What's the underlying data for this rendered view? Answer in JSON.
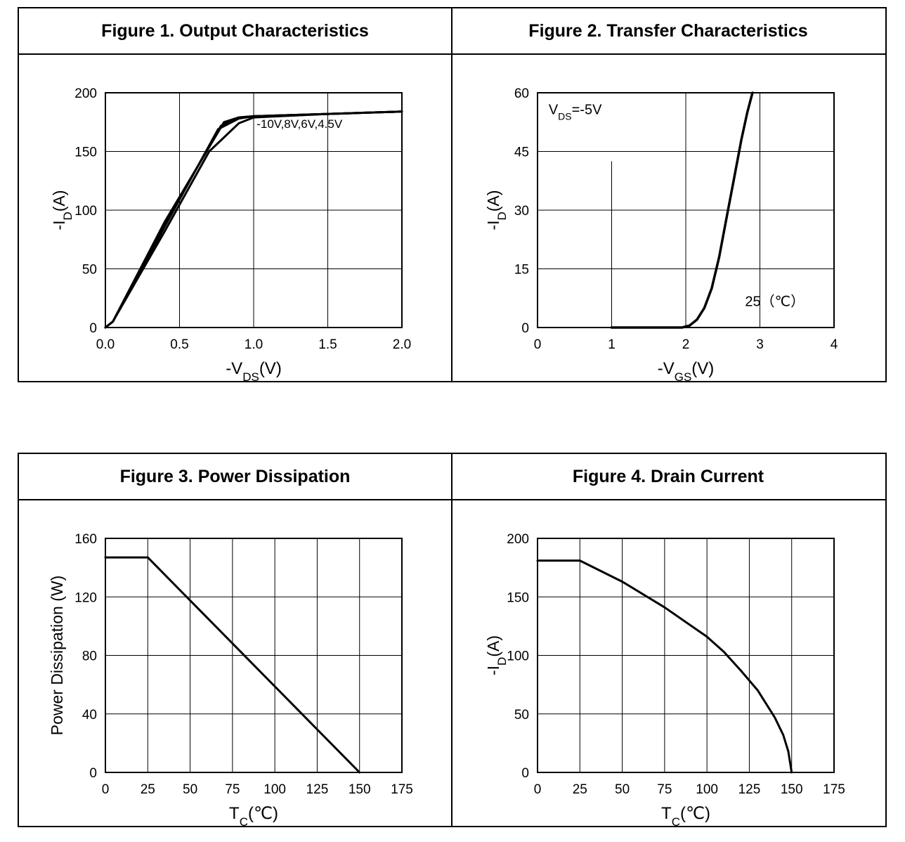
{
  "figures": [
    {
      "title": "Figure 1. Output Characteristics"
    },
    {
      "title": "Figure 2. Transfer Characteristics"
    },
    {
      "title": "Figure 3. Power Dissipation"
    },
    {
      "title": "Figure 4. Drain Current"
    }
  ],
  "chart_data": [
    {
      "type": "line",
      "title": "Figure 1. Output Characteristics",
      "xlabel": "-V",
      "xlabel_sub": "DS",
      "xlabel_unit": "(V)",
      "ylabel": "-I",
      "ylabel_sub": "D",
      "ylabel_unit": "(A)",
      "xlim": [
        0,
        2
      ],
      "ylim": [
        0,
        200
      ],
      "xticks": [
        "0.0",
        "0.5",
        "1.0",
        "1.5",
        "2.0"
      ],
      "xtick_values": [
        0,
        0.5,
        1,
        1.5,
        2
      ],
      "yticks": [
        "0",
        "50",
        "100",
        "150",
        "200"
      ],
      "ytick_values": [
        0,
        50,
        100,
        150,
        200
      ],
      "annotation": "-10V,8V,6V,4.5V",
      "series": [
        {
          "name": "-10V",
          "x": [
            0,
            0.05,
            0.4,
            0.8,
            0.9,
            1.0,
            1.5,
            2.0
          ],
          "y": [
            0,
            5,
            90,
            175,
            179,
            180,
            182,
            184
          ]
        },
        {
          "name": "8V",
          "x": [
            0,
            0.05,
            0.4,
            0.78,
            0.9,
            1.0,
            1.5,
            2.0
          ],
          "y": [
            0,
            5,
            88,
            172,
            179,
            180,
            182,
            184
          ]
        },
        {
          "name": "6V",
          "x": [
            0,
            0.05,
            0.4,
            0.76,
            0.9,
            1.0,
            1.5,
            2.0
          ],
          "y": [
            0,
            5,
            86,
            169,
            178,
            180,
            182,
            184
          ]
        },
        {
          "name": "4.5V",
          "x": [
            0,
            0.05,
            0.4,
            0.7,
            0.9,
            1.0,
            1.5,
            2.0
          ],
          "y": [
            0,
            5,
            82,
            150,
            174,
            179,
            182,
            184
          ]
        }
      ]
    },
    {
      "type": "line",
      "title": "Figure 2. Transfer Characteristics",
      "xlabel": "-V",
      "xlabel_sub": "GS",
      "xlabel_unit": "(V)",
      "ylabel": "-I",
      "ylabel_sub": "D",
      "ylabel_unit": "(A)",
      "xlim": [
        0,
        4
      ],
      "ylim": [
        0,
        60
      ],
      "xticks": [
        "0",
        "1",
        "2",
        "3",
        "4"
      ],
      "xtick_values": [
        0,
        1,
        2,
        3,
        4
      ],
      "yticks": [
        "0",
        "15",
        "30",
        "45",
        "60"
      ],
      "ytick_values": [
        0,
        15,
        30,
        45,
        60
      ],
      "annotation_main": "V",
      "annotation_sub": "DS",
      "annotation_rest": "=-5V",
      "temperature_label": "25（℃）",
      "series": [
        {
          "name": "25℃",
          "x": [
            1.0,
            1.5,
            1.95,
            2.05,
            2.15,
            2.25,
            2.35,
            2.45,
            2.55,
            2.65,
            2.75,
            2.83,
            2.9
          ],
          "y": [
            0,
            0,
            0,
            0.5,
            2,
            5,
            10,
            18,
            28,
            38,
            48,
            55,
            60
          ]
        }
      ]
    },
    {
      "type": "line",
      "title": "Figure 3. Power Dissipation",
      "xlabel": "T",
      "xlabel_sub": "C",
      "xlabel_unit": "(℃)",
      "ylabel": "Power Dissipation (W)",
      "ylabel_sub": "",
      "ylabel_unit": "",
      "xlim": [
        0,
        175
      ],
      "ylim": [
        0,
        160
      ],
      "xticks": [
        "0",
        "25",
        "50",
        "75",
        "100",
        "125",
        "150",
        "175"
      ],
      "xtick_values": [
        0,
        25,
        50,
        75,
        100,
        125,
        150,
        175
      ],
      "yticks": [
        "0",
        "40",
        "80",
        "120",
        "160"
      ],
      "ytick_values": [
        0,
        40,
        80,
        120,
        160
      ],
      "series": [
        {
          "name": "PD",
          "x": [
            0,
            25,
            150
          ],
          "y": [
            147,
            147,
            0
          ]
        }
      ]
    },
    {
      "type": "line",
      "title": "Figure 4. Drain Current",
      "xlabel": "T",
      "xlabel_sub": "C",
      "xlabel_unit": "(℃)",
      "ylabel": "-I",
      "ylabel_sub": "D",
      "ylabel_unit": "(A)",
      "xlim": [
        0,
        175
      ],
      "ylim": [
        0,
        200
      ],
      "xticks": [
        "0",
        "25",
        "50",
        "75",
        "100",
        "125",
        "150",
        "175"
      ],
      "xtick_values": [
        0,
        25,
        50,
        75,
        100,
        125,
        150,
        175
      ],
      "yticks": [
        "0",
        "50",
        "100",
        "150",
        "200"
      ],
      "ytick_values": [
        0,
        50,
        100,
        150,
        200
      ],
      "series": [
        {
          "name": "ID",
          "x": [
            0,
            25,
            50,
            75,
            100,
            110,
            120,
            130,
            140,
            145,
            148,
            150
          ],
          "y": [
            181,
            181,
            163,
            141,
            116,
            103,
            87,
            70,
            47,
            32,
            18,
            0
          ]
        }
      ]
    }
  ]
}
